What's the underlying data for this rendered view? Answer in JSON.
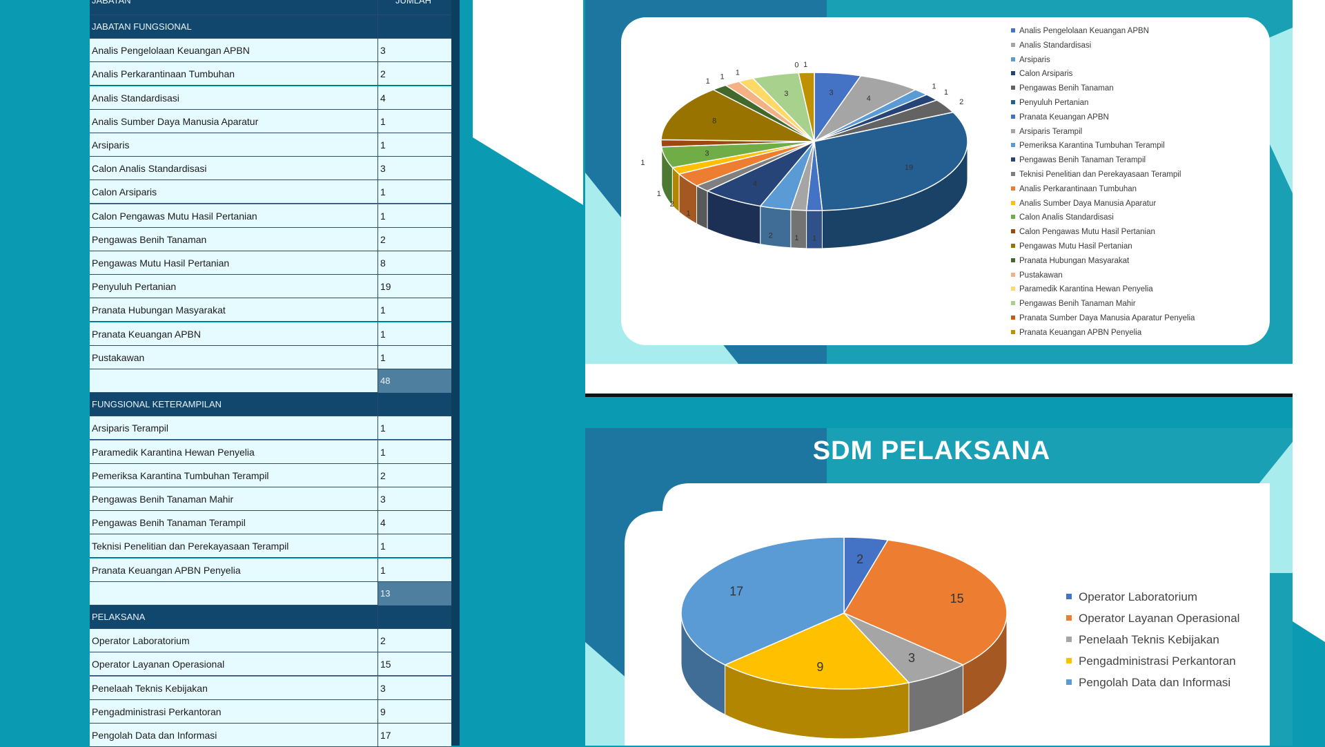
{
  "table": {
    "col_jabatan": "JABATAN",
    "col_jumlah": "JUMLAH",
    "sections": [
      {
        "header": "JABATAN FUNGSIONAL",
        "rows": [
          {
            "name": "Analis Pengelolaan Keuangan APBN",
            "value": "3"
          },
          {
            "name": "Analis Perkarantinaan Tumbuhan",
            "value": "2"
          },
          {
            "name": "Analis Standardisasi",
            "value": "4"
          },
          {
            "name": "Analis Sumber Daya Manusia Aparatur",
            "value": "1"
          },
          {
            "name": "Arsiparis",
            "value": "1"
          },
          {
            "name": "Calon Analis Standardisasi",
            "value": "3"
          },
          {
            "name": "Calon Arsiparis",
            "value": "1"
          },
          {
            "name": "Calon Pengawas Mutu Hasil Pertanian",
            "value": "1"
          },
          {
            "name": "Pengawas Benih Tanaman",
            "value": "2"
          },
          {
            "name": "Pengawas Mutu Hasil Pertanian",
            "value": "8"
          },
          {
            "name": "Penyuluh Pertanian",
            "value": "19"
          },
          {
            "name": "Pranata Hubungan Masyarakat",
            "value": "1"
          },
          {
            "name": "Pranata Keuangan APBN",
            "value": "1"
          },
          {
            "name": "Pustakawan",
            "value": "1"
          }
        ],
        "total": "48"
      },
      {
        "header": "FUNGSIONAL KETERAMPILAN",
        "rows": [
          {
            "name": "Arsiparis Terampil",
            "value": "1"
          },
          {
            "name": "Paramedik Karantina Hewan Penyelia",
            "value": "1"
          },
          {
            "name": "Pemeriksa Karantina Tumbuhan Terampil",
            "value": "2"
          },
          {
            "name": "Pengawas Benih Tanaman Mahir",
            "value": "3"
          },
          {
            "name": "Pengawas Benih Tanaman Terampil",
            "value": "4"
          },
          {
            "name": "Teknisi Penelitian dan Perekayasaan Terampil",
            "value": "1"
          },
          {
            "name": "Pranata Keuangan APBN Penyelia",
            "value": "1"
          }
        ],
        "total": "13"
      },
      {
        "header": "PELAKSANA",
        "rows": [
          {
            "name": "Operator Laboratorium",
            "value": "2"
          },
          {
            "name": "Operator Layanan Operasional",
            "value": "15"
          },
          {
            "name": "Penelaah Teknis Kebijakan",
            "value": "3"
          },
          {
            "name": "Pengadministrasi Perkantoran",
            "value": "9"
          },
          {
            "name": "Pengolah Data dan Informasi",
            "value": "17"
          }
        ],
        "total": ""
      }
    ]
  },
  "chart_data": [
    {
      "type": "pie",
      "title": "",
      "categories": [
        "Analis Pengelolaan Keuangan APBN",
        "Analis Standardisasi",
        "Arsiparis",
        "Calon Arsiparis",
        "Pengawas Benih Tanaman",
        "Penyuluh Pertanian",
        "Pranata Keuangan APBN",
        "Arsiparis Terampil",
        "Pemeriksa Karantina Tumbuhan Terampil",
        "Pengawas Benih Tanaman Terampil",
        "Teknisi Penelitian dan Perekayasaan Terampil",
        "Analis Perkarantinaan Tumbuhan",
        "Analis Sumber Daya Manusia Aparatur",
        "Calon Analis Standardisasi",
        "Calon Pengawas Mutu Hasil Pertanian",
        "Pengawas Mutu Hasil Pertanian",
        "Pranata Hubungan Masyarakat",
        "Pustakawan",
        "Paramedik Karantina Hewan Penyelia",
        "Pengawas Benih Tanaman Mahir",
        "Pranata Sumber Daya Manusia Aparatur Penyelia",
        "Pranata Keuangan APBN Penyelia"
      ],
      "values": [
        3,
        4,
        1,
        1,
        2,
        19,
        1,
        1,
        2,
        4,
        1,
        2,
        1,
        3,
        1,
        8,
        1,
        1,
        1,
        3,
        0,
        1
      ],
      "colors": [
        "#4472c4",
        "#a5a5a5",
        "#5b9bd5",
        "#264478",
        "#636363",
        "#255e91",
        "#4472c4",
        "#a5a5a5",
        "#5b9bd5",
        "#264478",
        "#7f7f7f",
        "#ed7d31",
        "#ffc000",
        "#70ad47",
        "#9e480e",
        "#997300",
        "#43682b",
        "#f4b183",
        "#ffd966",
        "#a9d18e",
        "#c55a11",
        "#bf9000"
      ],
      "legend_position": "right"
    },
    {
      "type": "pie",
      "title": "SDM PELAKSANA",
      "categories": [
        "Operator Laboratorium",
        "Operator Layanan Operasional",
        "Penelaah Teknis Kebijakan",
        "Pengadministrasi Perkantoran",
        "Pengolah Data dan Informasi"
      ],
      "values": [
        2,
        15,
        3,
        9,
        17
      ],
      "colors": [
        "#4472c4",
        "#ed7d31",
        "#a5a5a5",
        "#ffc000",
        "#5b9bd5"
      ],
      "legend_position": "right"
    }
  ]
}
